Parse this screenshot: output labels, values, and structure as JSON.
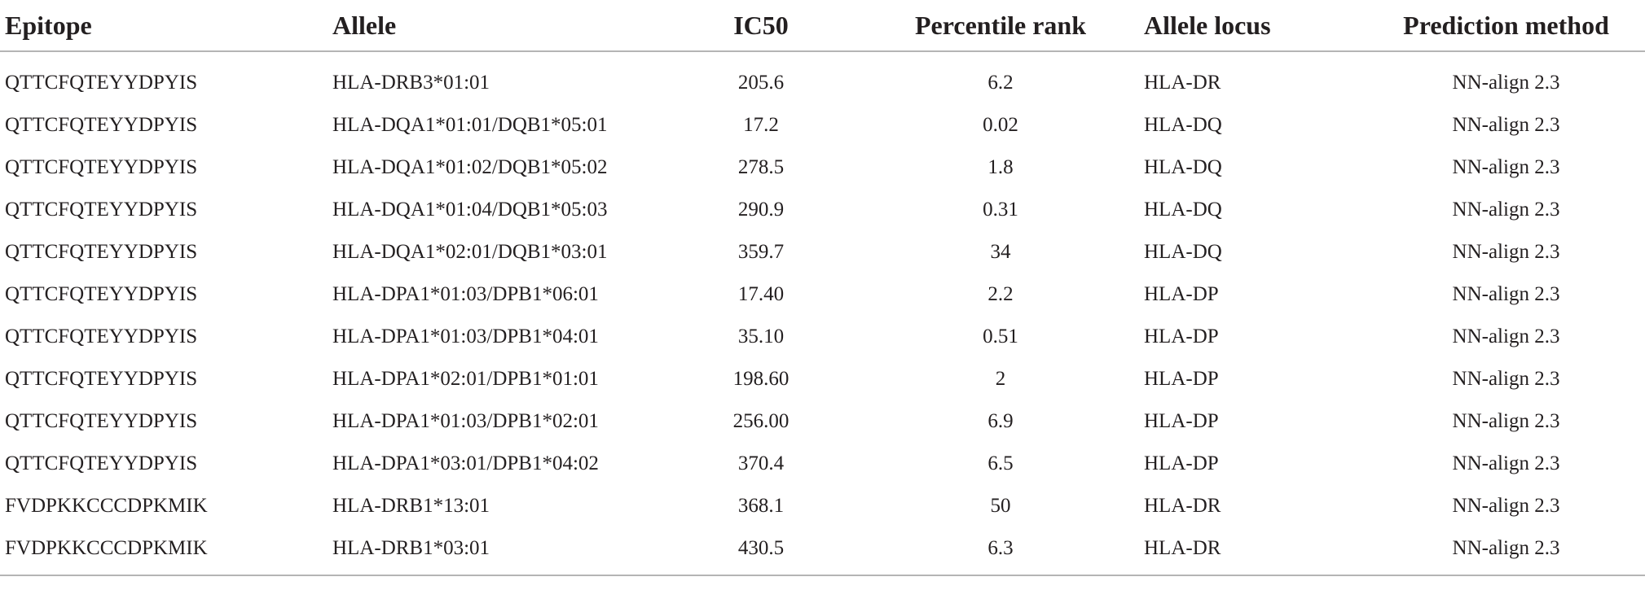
{
  "table": {
    "headers": {
      "epitope": "Epitope",
      "allele": "Allele",
      "ic50": "IC50",
      "percentile_rank": "Percentile rank",
      "allele_locus": "Allele locus",
      "prediction_method": "Prediction method"
    },
    "rows": [
      {
        "epitope": "QTTCFQTEYYDPYIS",
        "allele": "HLA-DRB3*01:01",
        "ic50": "205.6",
        "percentile_rank": "6.2",
        "allele_locus": "HLA-DR",
        "prediction_method": "NN-align 2.3"
      },
      {
        "epitope": "QTTCFQTEYYDPYIS",
        "allele": "HLA-DQA1*01:01/DQB1*05:01",
        "ic50": "17.2",
        "percentile_rank": "0.02",
        "allele_locus": "HLA-DQ",
        "prediction_method": "NN-align 2.3"
      },
      {
        "epitope": "QTTCFQTEYYDPYIS",
        "allele": "HLA-DQA1*01:02/DQB1*05:02",
        "ic50": "278.5",
        "percentile_rank": "1.8",
        "allele_locus": "HLA-DQ",
        "prediction_method": "NN-align 2.3"
      },
      {
        "epitope": "QTTCFQTEYYDPYIS",
        "allele": "HLA-DQA1*01:04/DQB1*05:03",
        "ic50": "290.9",
        "percentile_rank": "0.31",
        "allele_locus": "HLA-DQ",
        "prediction_method": "NN-align 2.3"
      },
      {
        "epitope": "QTTCFQTEYYDPYIS",
        "allele": "HLA-DQA1*02:01/DQB1*03:01",
        "ic50": "359.7",
        "percentile_rank": "34",
        "allele_locus": "HLA-DQ",
        "prediction_method": "NN-align 2.3"
      },
      {
        "epitope": "QTTCFQTEYYDPYIS",
        "allele": "HLA-DPA1*01:03/DPB1*06:01",
        "ic50": "17.40",
        "percentile_rank": "2.2",
        "allele_locus": "HLA-DP",
        "prediction_method": "NN-align 2.3"
      },
      {
        "epitope": "QTTCFQTEYYDPYIS",
        "allele": "HLA-DPA1*01:03/DPB1*04:01",
        "ic50": "35.10",
        "percentile_rank": "0.51",
        "allele_locus": "HLA-DP",
        "prediction_method": "NN-align 2.3"
      },
      {
        "epitope": "QTTCFQTEYYDPYIS",
        "allele": "HLA-DPA1*02:01/DPB1*01:01",
        "ic50": "198.60",
        "percentile_rank": "2",
        "allele_locus": "HLA-DP",
        "prediction_method": "NN-align 2.3"
      },
      {
        "epitope": "QTTCFQTEYYDPYIS",
        "allele": "HLA-DPA1*01:03/DPB1*02:01",
        "ic50": "256.00",
        "percentile_rank": "6.9",
        "allele_locus": "HLA-DP",
        "prediction_method": "NN-align 2.3"
      },
      {
        "epitope": "QTTCFQTEYYDPYIS",
        "allele": "HLA-DPA1*03:01/DPB1*04:02",
        "ic50": "370.4",
        "percentile_rank": "6.5",
        "allele_locus": "HLA-DP",
        "prediction_method": "NN-align 2.3"
      },
      {
        "epitope": "FVDPKKCCCDPKMIK",
        "allele": "HLA-DRB1*13:01",
        "ic50": "368.1",
        "percentile_rank": "50",
        "allele_locus": "HLA-DR",
        "prediction_method": "NN-align 2.3"
      },
      {
        "epitope": "FVDPKKCCCDPKMIK",
        "allele": "HLA-DRB1*03:01",
        "ic50": "430.5",
        "percentile_rank": "6.3",
        "allele_locus": "HLA-DR",
        "prediction_method": "NN-align 2.3"
      }
    ]
  }
}
